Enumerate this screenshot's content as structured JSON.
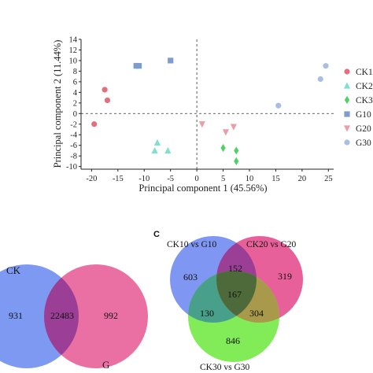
{
  "chart_data": [
    {
      "type": "scatter",
      "title": "",
      "xlabel": "Principal component 1 (45.56%)",
      "ylabel": "Principal component 2 (11.44%)",
      "xlim": [
        -22,
        26
      ],
      "ylim": [
        -10.5,
        14
      ],
      "x_ticks": [
        -20,
        -15,
        -10,
        -5,
        0,
        5,
        10,
        15,
        20,
        25
      ],
      "y_ticks": [
        14,
        12,
        10,
        8,
        6,
        4,
        2,
        0,
        -2,
        -4,
        -6,
        -8,
        -10
      ],
      "reference_lines": {
        "x": 0,
        "y": 0,
        "style": "dashed"
      },
      "series": [
        {
          "name": "CK1",
          "marker": "circle",
          "color": "#e36f7e",
          "points": [
            [
              -17.5,
              4.5
            ],
            [
              -17.0,
              2.5
            ],
            [
              -19.5,
              -2.0
            ]
          ]
        },
        {
          "name": "CK2",
          "marker": "triangle-up",
          "color": "#7fdfd0",
          "points": [
            [
              -7.5,
              -5.5
            ],
            [
              -8.0,
              -7.0
            ],
            [
              -5.5,
              -7.0
            ]
          ]
        },
        {
          "name": "CK3",
          "marker": "diamond",
          "color": "#4fd068",
          "points": [
            [
              5.0,
              -6.5
            ],
            [
              7.5,
              -7.0
            ],
            [
              7.5,
              -9.0
            ]
          ]
        },
        {
          "name": "G10",
          "marker": "square",
          "color": "#7e9ccc",
          "points": [
            [
              -11.5,
              9.0
            ],
            [
              -11.0,
              9.0
            ],
            [
              -5.0,
              10.0
            ]
          ]
        },
        {
          "name": "G20",
          "marker": "triangle-down",
          "color": "#e8a0a8",
          "points": [
            [
              1.0,
              -2.0
            ],
            [
              5.5,
              -3.5
            ],
            [
              7.0,
              -2.5
            ]
          ]
        },
        {
          "name": "G30",
          "marker": "circle",
          "color": "#a8bfe0",
          "points": [
            [
              15.5,
              1.5
            ],
            [
              23.5,
              6.5
            ],
            [
              24.5,
              9.0
            ]
          ]
        }
      ],
      "legend_labels": [
        "CK1",
        "CK2",
        "CK3",
        "G10",
        "G20",
        "G30"
      ],
      "legend_position": "right"
    },
    {
      "type": "venn",
      "sets": [
        {
          "label": "CK",
          "unique": "931",
          "color": "#6f8ef0"
        },
        {
          "label": "G",
          "unique": "992",
          "color": "#e8609a"
        }
      ],
      "intersection": "22483",
      "intersection_color": "#9a3f95"
    },
    {
      "type": "venn",
      "panel_label": "C",
      "sets": [
        {
          "label": "CK10 vs G10",
          "unique": "603",
          "color": "#7f97f2"
        },
        {
          "label": "CK20 vs G20",
          "unique": "319",
          "color": "#e8609a"
        },
        {
          "label": "CK30 vs G30",
          "unique": "846",
          "color": "#82ec58"
        }
      ],
      "overlaps": {
        "ab": "152",
        "ac": "130",
        "bc": "304",
        "abc": "167"
      },
      "overlap_colors": {
        "ab": "#9a3f95",
        "ac": "#49a08a",
        "bc": "#a89a4a",
        "abc": "#4f6a3a"
      }
    }
  ]
}
